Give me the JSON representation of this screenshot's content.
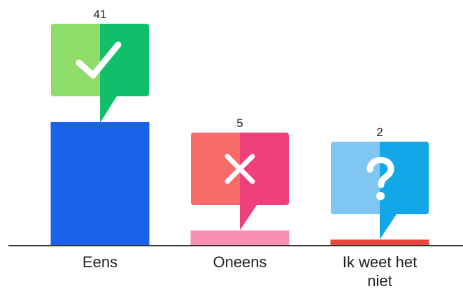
{
  "chart_data": {
    "type": "bar",
    "categories": [
      "Eens",
      "Oneens",
      "Ik weet het niet"
    ],
    "category_lines": [
      [
        "Eens"
      ],
      [
        "Oneens"
      ],
      [
        "Ik weet het",
        "niet"
      ]
    ],
    "values": [
      41,
      5,
      2
    ],
    "value_labels": [
      "41",
      "5",
      "2"
    ],
    "ylim": [
      0,
      41
    ],
    "grid": false,
    "legend": "none",
    "bar_colors": [
      "#1a62e8",
      "#f78fb3",
      "#e8453c"
    ],
    "icons": [
      {
        "name": "check-icon",
        "light": "#8fdc6a",
        "dark": "#0fbf6a"
      },
      {
        "name": "cross-icon",
        "light": "#f96a6a",
        "dark": "#f0407a"
      },
      {
        "name": "question-icon",
        "light": "#7fc6f2",
        "dark": "#12a8e8"
      }
    ],
    "axis_color": "#333333"
  }
}
